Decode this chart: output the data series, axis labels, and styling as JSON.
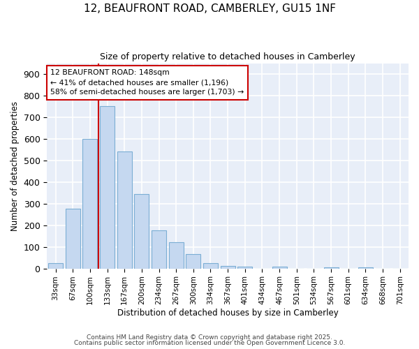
{
  "title_line1": "12, BEAUFRONT ROAD, CAMBERLEY, GU15 1NF",
  "title_line2": "Size of property relative to detached houses in Camberley",
  "xlabel": "Distribution of detached houses by size in Camberley",
  "ylabel": "Number of detached properties",
  "bar_labels": [
    "33sqm",
    "67sqm",
    "100sqm",
    "133sqm",
    "167sqm",
    "200sqm",
    "234sqm",
    "267sqm",
    "300sqm",
    "334sqm",
    "367sqm",
    "401sqm",
    "434sqm",
    "467sqm",
    "501sqm",
    "534sqm",
    "567sqm",
    "601sqm",
    "634sqm",
    "668sqm",
    "701sqm"
  ],
  "bar_values": [
    25,
    275,
    600,
    750,
    540,
    343,
    178,
    120,
    68,
    25,
    12,
    10,
    0,
    8,
    0,
    0,
    5,
    0,
    5,
    0,
    0
  ],
  "bar_color": "#c5d8f0",
  "bar_edge_color": "#7baed4",
  "background_color": "#ffffff",
  "plot_bg_color": "#e8eef8",
  "grid_color": "#ffffff",
  "vline_color": "#cc0000",
  "vline_x_index": 3,
  "annotation_text": "12 BEAUFRONT ROAD: 148sqm\n← 41% of detached houses are smaller (1,196)\n58% of semi-detached houses are larger (1,703) →",
  "annotation_box_color": "#ffffff",
  "annotation_box_edge": "#cc0000",
  "ylim": [
    0,
    950
  ],
  "yticks": [
    0,
    100,
    200,
    300,
    400,
    500,
    600,
    700,
    800,
    900
  ],
  "footnote1": "Contains HM Land Registry data © Crown copyright and database right 2025.",
  "footnote2": "Contains public sector information licensed under the Open Government Licence 3.0."
}
